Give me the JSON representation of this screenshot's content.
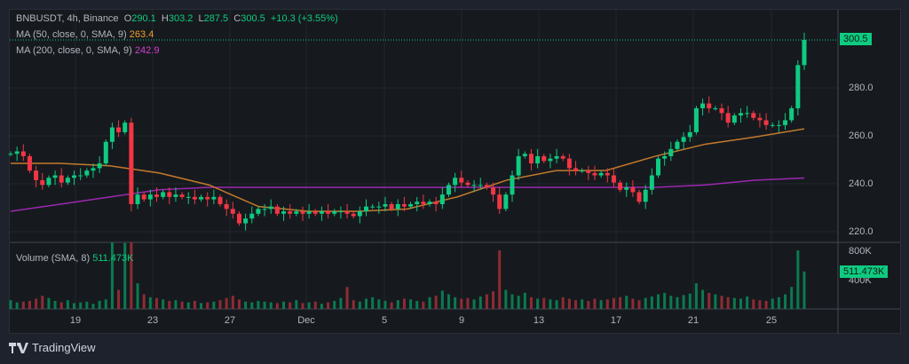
{
  "legend": {
    "symbol": "BNBUSDT, 4h, Binance",
    "open_label": "O",
    "open": "290.1",
    "high_label": "H",
    "high": "303.2",
    "low_label": "L",
    "low": "287.5",
    "close_label": "C",
    "close": "300.5",
    "change": "+10.3 (+3.55%)",
    "ma50_label": "MA (50, close, 0, SMA, 9)",
    "ma50_value": "263.4",
    "ma200_label": "MA (200, close, 0, SMA, 9)",
    "ma200_value": "242.9",
    "volume_label": "Volume (SMA, 8)",
    "volume_value": "511.473K"
  },
  "price_axis": {
    "ticks": [
      "280.0",
      "260.0",
      "240.0",
      "220.0"
    ],
    "last_price": "300.5"
  },
  "volume_axis": {
    "ticks": [
      "800K",
      "400K"
    ],
    "last_volume": "511.473K"
  },
  "time_axis": {
    "ticks": [
      "19",
      "23",
      "27",
      "Dec",
      "5",
      "9",
      "13",
      "17",
      "21",
      "25"
    ]
  },
  "brand": "TradingView",
  "colors": {
    "up": "#0ecb81",
    "down": "#f23645",
    "ma50": "#c47a2c",
    "ma200": "#9c27b0",
    "background": "#161a1e"
  },
  "chart_data": {
    "type": "candlestick",
    "interval": "4h",
    "ylim": [
      213,
      305
    ],
    "closes": [
      253,
      254,
      252,
      246,
      242,
      240,
      243,
      244,
      241,
      243,
      244,
      244,
      246,
      247,
      249,
      258,
      264,
      262,
      266,
      232,
      236,
      234,
      236,
      235,
      237,
      235,
      236,
      235,
      235,
      234,
      235,
      234,
      235,
      232,
      230,
      228,
      224,
      226,
      228,
      230,
      230,
      231,
      228,
      229,
      228,
      229,
      228,
      229,
      228,
      229,
      228,
      229,
      229,
      228,
      227,
      229,
      231,
      231,
      231,
      232,
      230,
      232,
      231,
      232,
      233,
      232,
      233,
      232,
      236,
      240,
      243,
      241,
      240,
      240,
      240,
      239,
      236,
      230,
      236,
      244,
      252,
      253,
      249,
      252,
      250,
      251,
      252,
      251,
      247,
      246,
      246,
      245,
      244,
      245,
      244,
      241,
      238,
      239,
      237,
      233,
      238,
      244,
      251,
      252,
      255,
      258,
      260,
      262,
      272,
      274,
      272,
      272,
      270,
      266,
      269,
      270,
      270,
      268,
      267,
      265,
      265,
      265,
      267,
      272,
      290,
      300.5
    ],
    "volumes_k": [
      120,
      90,
      100,
      110,
      140,
      180,
      150,
      110,
      90,
      120,
      80,
      90,
      100,
      70,
      110,
      130,
      950,
      260,
      900,
      950,
      350,
      200,
      160,
      150,
      130,
      110,
      120,
      100,
      90,
      110,
      80,
      90,
      100,
      120,
      150,
      180,
      130,
      100,
      90,
      110,
      100,
      90,
      80,
      100,
      90,
      120,
      80,
      90,
      100,
      70,
      90,
      110,
      150,
      300,
      120,
      100,
      140,
      160,
      130,
      110,
      90,
      120,
      140,
      130,
      110,
      100,
      160,
      180,
      250,
      200,
      160,
      140,
      150,
      130,
      170,
      200,
      240,
      800,
      260,
      200,
      180,
      220,
      160,
      140,
      150,
      130,
      120,
      160,
      140,
      120,
      130,
      110,
      140,
      120,
      130,
      150,
      160,
      180,
      140,
      120,
      150,
      170,
      200,
      220,
      180,
      160,
      190,
      210,
      350,
      260,
      220,
      200,
      180,
      160,
      150,
      140,
      170,
      130,
      120,
      110,
      140,
      160,
      200,
      300,
      800,
      511.473
    ],
    "ma50": [
      249,
      249,
      248,
      245,
      240,
      231,
      229,
      229,
      230,
      235,
      242,
      246,
      246,
      252,
      257,
      260,
      263.4
    ],
    "ma200": [
      229,
      232,
      235,
      238,
      239,
      239,
      239,
      239,
      239,
      239,
      239,
      239,
      239,
      239,
      240,
      242,
      242.9
    ]
  }
}
